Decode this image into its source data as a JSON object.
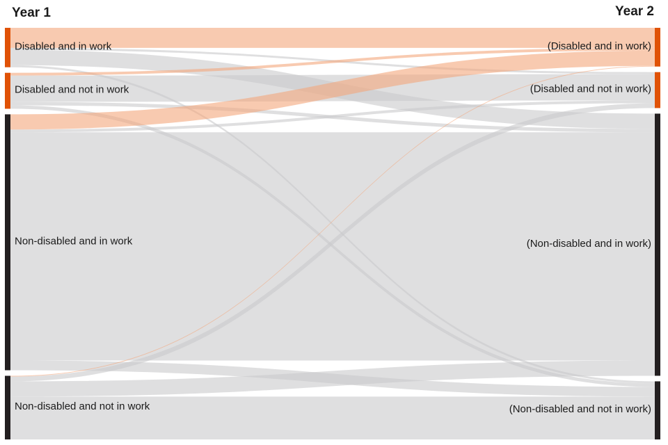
{
  "chart_data": {
    "type": "sankey",
    "columns": [
      "Year 1",
      "Year 2"
    ],
    "source_nodes": [
      {
        "label": "Disabled and in work",
        "color": "#e05206"
      },
      {
        "label": "Disabled and not in work",
        "color": "#e05206"
      },
      {
        "label": "Non-disabled and in work",
        "color": "#231f20"
      },
      {
        "label": "Non-disabled and not in work",
        "color": "#231f20"
      }
    ],
    "target_nodes": [
      {
        "label": "(Disabled and in work)",
        "color": "#e05206"
      },
      {
        "label": "(Disabled and not in work)",
        "color": "#e05206"
      },
      {
        "label": "(Non-disabled and in work)",
        "color": "#231f20"
      },
      {
        "label": "(Non-disabled and not in work)",
        "color": "#231f20"
      }
    ],
    "links": [
      {
        "source": 0,
        "target": 1,
        "value": 3,
        "color": "#c9c9cc"
      },
      {
        "source": 0,
        "target": 2,
        "value": 22,
        "color": "#c9c9cc"
      },
      {
        "source": 0,
        "target": 3,
        "value": 3,
        "color": "#c9c9cc"
      },
      {
        "source": 1,
        "target": 1,
        "value": 38,
        "color": "#c9c9cc"
      },
      {
        "source": 1,
        "target": 2,
        "value": 5,
        "color": "#c9c9cc"
      },
      {
        "source": 1,
        "target": 3,
        "value": 5,
        "color": "#c9c9cc"
      },
      {
        "source": 2,
        "target": 1,
        "value": 4,
        "color": "#c9c9cc"
      },
      {
        "source": 2,
        "target": 2,
        "value": 330,
        "color": "#c9c9cc"
      },
      {
        "source": 2,
        "target": 3,
        "value": 14,
        "color": "#c9c9cc"
      },
      {
        "source": 3,
        "target": 1,
        "value": 7,
        "color": "#c9c9cc"
      },
      {
        "source": 3,
        "target": 2,
        "value": 22,
        "color": "#c9c9cc"
      },
      {
        "source": 3,
        "target": 3,
        "value": 62,
        "color": "#c9c9cc"
      },
      {
        "source": 0,
        "target": 0,
        "value": 29,
        "color": "#f4a67c"
      },
      {
        "source": 1,
        "target": 0,
        "value": 4,
        "color": "#f4a67c"
      },
      {
        "source": 2,
        "target": 0,
        "value": 22,
        "color": "#f4a67c"
      },
      {
        "source": 3,
        "target": 0,
        "value": 1,
        "color": "#f4a67c"
      }
    ]
  }
}
